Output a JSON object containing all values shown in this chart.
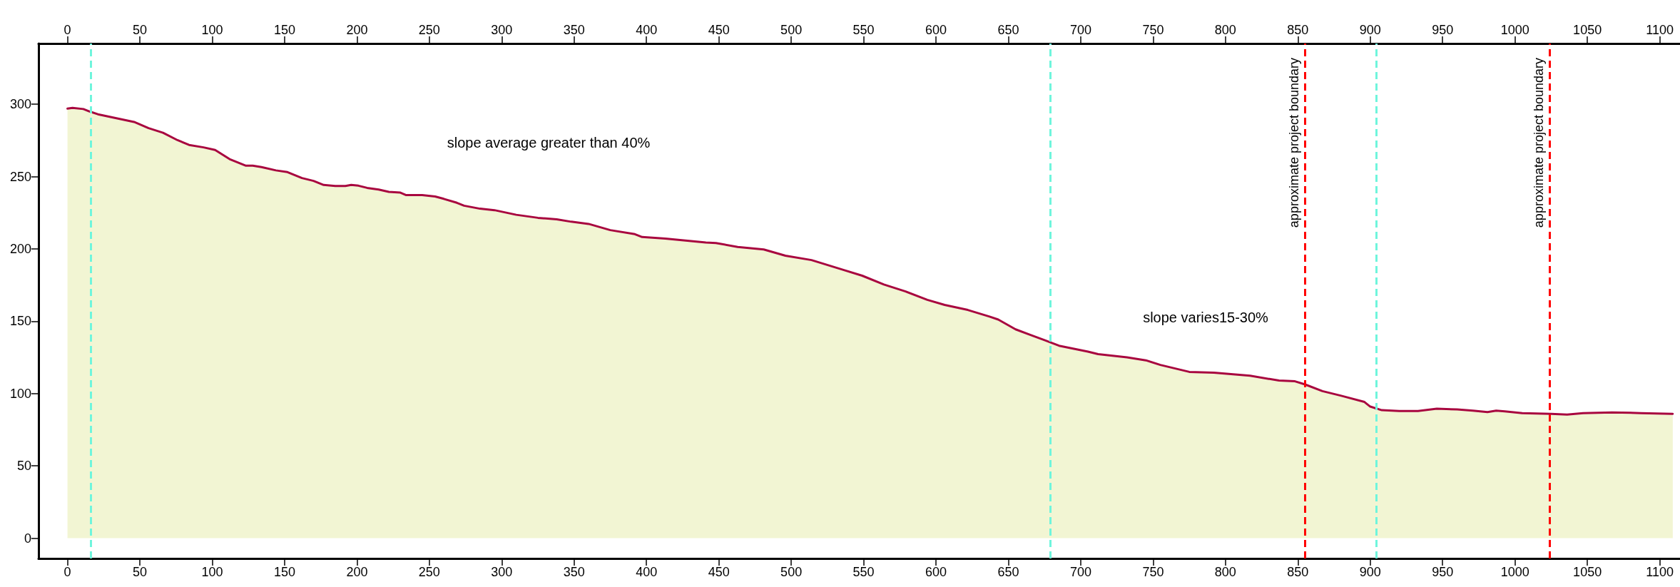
{
  "chart_data": {
    "type": "area",
    "xlim": [
      -20,
      1114
    ],
    "ylim": [
      -14,
      342
    ],
    "xticks": [
      0,
      50,
      100,
      150,
      200,
      250,
      300,
      350,
      400,
      450,
      500,
      550,
      600,
      650,
      700,
      750,
      800,
      850,
      900,
      950,
      1000,
      1050,
      1100
    ],
    "x2lim": [
      -20,
      1114
    ],
    "x2ticks": [
      0,
      50,
      100,
      150,
      200,
      250,
      300,
      350,
      400,
      450,
      500,
      550,
      600,
      650,
      700,
      750,
      800,
      850,
      900,
      950,
      1000,
      1050,
      1100
    ],
    "yticks": [
      0,
      50,
      100,
      150,
      200,
      250,
      300
    ],
    "grid": false,
    "marker": "none",
    "line_style": "solid",
    "series": [
      {
        "color": "#a8063f",
        "x": [
          0,
          3.5,
          11,
          15.6,
          21,
          46,
          56,
          66,
          76,
          84,
          94,
          102,
          112,
          123,
          128,
          134,
          144,
          152,
          162,
          170,
          177,
          185,
          192,
          196,
          201,
          207,
          215,
          222,
          230,
          234,
          245,
          254,
          260,
          269,
          274,
          285,
          295,
          310,
          325,
          338,
          348,
          360,
          375,
          392,
          397,
          413,
          441,
          448,
          463,
          481,
          496,
          514,
          536,
          549,
          564,
          579,
          594,
          606,
          622,
          637,
          643,
          655,
          665,
          675,
          685,
          705,
          712,
          732,
          745,
          755,
          775,
          792,
          817,
          837,
          848,
          855,
          867,
          880,
          896,
          900,
          908,
          920,
          933,
          946,
          960,
          971,
          981,
          987,
          993,
          1005,
          1025,
          1036,
          1047,
          1067,
          1087,
          1109
        ],
        "values": [
          297,
          297.5,
          296.7,
          294.9,
          293.1,
          287.8,
          283.5,
          280.3,
          275.2,
          271.9,
          270.2,
          268.4,
          262.1,
          257.6,
          257.6,
          256.6,
          254.3,
          253.1,
          249,
          247,
          244.2,
          243.5,
          243.5,
          244.2,
          243.7,
          242.2,
          241,
          239.4,
          238.9,
          237.2,
          237.2,
          236.2,
          234.6,
          231.9,
          229.9,
          227.8,
          226.8,
          223.6,
          221.5,
          220.5,
          218.8,
          217.3,
          213,
          210.2,
          208.2,
          207.2,
          204.4,
          204.1,
          201.4,
          199.6,
          195.3,
          192.3,
          185.5,
          181.5,
          175.4,
          170.6,
          164.8,
          161.3,
          157.8,
          153.2,
          151.2,
          144.4,
          140.6,
          136.9,
          133.1,
          129,
          127.3,
          125,
          123,
          119.8,
          115,
          114.5,
          112.3,
          109,
          108.5,
          106.3,
          101.7,
          98.5,
          94.2,
          91,
          88.5,
          87.9,
          87.9,
          89.5,
          89,
          88.2,
          87.2,
          88.2,
          87.7,
          86.5,
          86,
          85.5,
          86.5,
          87,
          86.5,
          86
        ]
      }
    ],
    "ref_lines": [
      {
        "axis": "x",
        "value": 16,
        "color": "#6ff5dc",
        "line_style": "dashed"
      },
      {
        "axis": "x",
        "value": 679,
        "color": "#6ff5dc",
        "line_style": "dashed"
      },
      {
        "axis": "x",
        "value": 855,
        "color": "#ff0000",
        "line_style": "dashed",
        "label": "approximate project boundary"
      },
      {
        "axis": "x",
        "value": 904,
        "color": "#6ff5dc",
        "line_style": "dashed"
      },
      {
        "axis": "x",
        "value": 1024,
        "color": "#ff0000",
        "line_style": "dashed",
        "label": "approximate project boundary"
      }
    ],
    "annotations": [
      "slope average greater than 40%",
      "slope varies15-30%"
    ]
  }
}
